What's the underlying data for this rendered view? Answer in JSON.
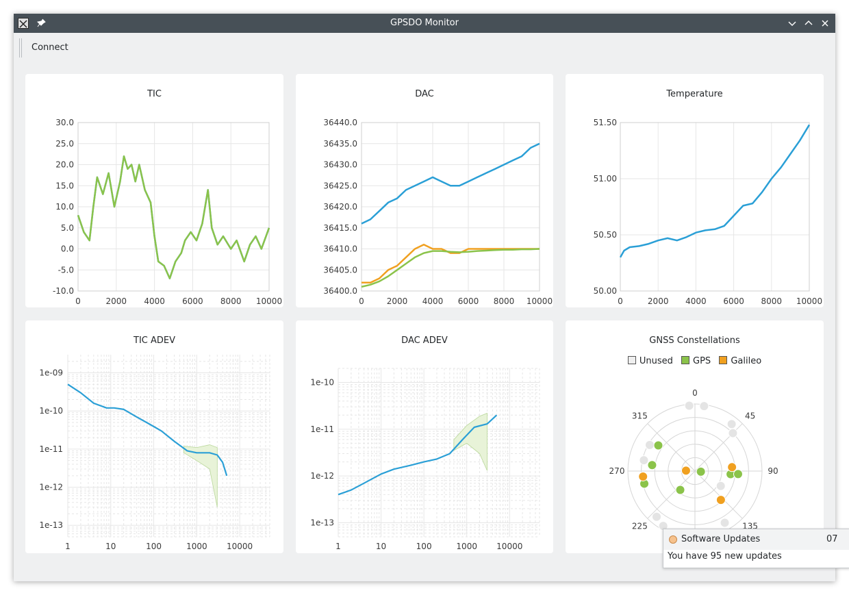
{
  "window": {
    "title": "GPSDO Monitor"
  },
  "toolbar": {
    "connect_label": "Connect"
  },
  "colors": {
    "blue": "#2a9fd6",
    "green": "#8bc34a",
    "orange": "#f0a020",
    "grid": "#e6e6e6",
    "fill": "#e8f3d8"
  },
  "panels": {
    "tic": {
      "title": "TIC",
      "chart_data": {
        "type": "line",
        "title": "TIC",
        "xlim": [
          0,
          10000
        ],
        "ylim": [
          -10,
          30
        ],
        "x_ticks": [
          "0",
          "2000",
          "4000",
          "6000",
          "8000",
          "10000"
        ],
        "y_ticks": [
          "30.0",
          "25.0",
          "20.0",
          "15.0",
          "10.0",
          "5.0",
          "0.0",
          "-5.0",
          "-10.0"
        ],
        "series": [
          {
            "color": "#2a9fd6",
            "x": [
              0,
              300,
              600,
              800,
              1000,
              1300,
              1600,
              1900,
              2200,
              2400,
              2600,
              2800,
              3000,
              3200,
              3500,
              3800,
              4000,
              4200,
              4500,
              4800,
              5100,
              5400,
              5600,
              5900,
              6200,
              6500,
              6800,
              7000,
              7300,
              7600,
              8000,
              8300,
              8700,
              9000,
              9300,
              9600,
              10000
            ],
            "y": [
              8,
              4,
              2,
              10,
              17,
              13,
              18,
              10,
              16,
              22,
              19,
              20,
              16,
              20,
              14,
              11,
              3,
              -3,
              -4,
              -7,
              -3,
              -1,
              2,
              4,
              2,
              6,
              14,
              5,
              1,
              3,
              0,
              2,
              -3,
              1,
              3,
              0,
              5
            ]
          },
          {
            "color": "#8bc34a",
            "x": [
              0,
              300,
              600,
              800,
              1000,
              1300,
              1600,
              1900,
              2200,
              2400,
              2600,
              2800,
              3000,
              3200,
              3500,
              3800,
              4000,
              4200,
              4500,
              4800,
              5100,
              5400,
              5600,
              5900,
              6200,
              6500,
              6800,
              7000,
              7300,
              7600,
              8000,
              8300,
              8700,
              9000,
              9300,
              9600,
              10000
            ],
            "y": [
              8,
              4,
              2,
              10,
              17,
              13,
              18,
              10,
              16,
              22,
              19,
              20,
              16,
              20,
              14,
              11,
              3,
              -3,
              -4,
              -7,
              -3,
              -1,
              2,
              4,
              2,
              6,
              14,
              5,
              1,
              3,
              0,
              2,
              -3,
              1,
              3,
              0,
              5
            ]
          }
        ]
      }
    },
    "dac": {
      "title": "DAC",
      "chart_data": {
        "type": "line",
        "title": "DAC",
        "xlim": [
          0,
          10000
        ],
        "ylim": [
          36400,
          36440
        ],
        "x_ticks": [
          "0",
          "2000",
          "4000",
          "6000",
          "8000",
          "10000"
        ],
        "y_ticks": [
          "36440.0",
          "36435.0",
          "36430.0",
          "36425.0",
          "36420.0",
          "36415.0",
          "36410.0",
          "36405.0",
          "36400.0"
        ],
        "series": [
          {
            "color": "#2a9fd6",
            "x": [
              0,
              500,
              1000,
              1500,
              2000,
              2500,
              3000,
              3500,
              4000,
              4500,
              5000,
              5500,
              6000,
              6500,
              7000,
              7500,
              8000,
              8500,
              9000,
              9500,
              10000
            ],
            "y": [
              36416,
              36417,
              36419,
              36421,
              36422,
              36424,
              36425,
              36426,
              36427,
              36426,
              36425,
              36425,
              36426,
              36427,
              36428,
              36429,
              36430,
              36431,
              36432,
              36434,
              36435
            ]
          },
          {
            "color": "#f0a020",
            "x": [
              0,
              500,
              1000,
              1500,
              2000,
              2500,
              3000,
              3500,
              4000,
              4500,
              5000,
              5500,
              6000,
              6500,
              7000,
              7500,
              8000,
              8500,
              9000,
              9500,
              10000
            ],
            "y": [
              36402,
              36402,
              36403,
              36405,
              36406,
              36408,
              36410,
              36411,
              36410,
              36410,
              36409,
              36409,
              36410,
              36410,
              36410,
              36410,
              36410,
              36410,
              36410,
              36410,
              36410
            ]
          },
          {
            "color": "#8bc34a",
            "x": [
              0,
              500,
              1000,
              1500,
              2000,
              2500,
              3000,
              3500,
              4000,
              4500,
              5000,
              5500,
              6000,
              6500,
              7000,
              7500,
              8000,
              8500,
              9000,
              9500,
              10000
            ],
            "y": [
              36401,
              36401.5,
              36402.3,
              36403.5,
              36405,
              36406.5,
              36408,
              36409,
              36409.5,
              36409.5,
              36409.3,
              36409.2,
              36409.3,
              36409.5,
              36409.6,
              36409.7,
              36409.8,
              36409.8,
              36409.9,
              36409.9,
              36410
            ]
          }
        ]
      }
    },
    "temp": {
      "title": "Temperature",
      "chart_data": {
        "type": "line",
        "title": "Temperature",
        "xlim": [
          0,
          10000
        ],
        "ylim": [
          50.0,
          51.5
        ],
        "x_ticks": [
          "0",
          "2000",
          "4000",
          "6000",
          "8000",
          "10000"
        ],
        "y_ticks": [
          "51.50",
          "51.00",
          "50.50",
          "50.00"
        ],
        "series": [
          {
            "color": "#2a9fd6",
            "x": [
              0,
              200,
              500,
              1000,
              1500,
              2000,
              2500,
              3000,
              3500,
              4000,
              4500,
              5000,
              5500,
              6000,
              6500,
              7000,
              7500,
              8000,
              8500,
              9000,
              9500,
              10000
            ],
            "y": [
              50.3,
              50.36,
              50.39,
              50.4,
              50.42,
              50.45,
              50.47,
              50.45,
              50.48,
              50.52,
              50.54,
              50.55,
              50.58,
              50.67,
              50.76,
              50.78,
              50.88,
              51.0,
              51.1,
              51.22,
              51.34,
              51.48
            ]
          }
        ]
      }
    },
    "tic_adev": {
      "title": "TIC ADEV",
      "chart_data": {
        "type": "line",
        "title": "TIC ADEV",
        "log_x": true,
        "log_y": true,
        "xlim": [
          1,
          50000
        ],
        "ylim": [
          5e-14,
          3e-09
        ],
        "x_ticks": [
          "1",
          "10",
          "100",
          "1000",
          "10000"
        ],
        "y_ticks": [
          "1e-09",
          "1e-10",
          "1e-11",
          "1e-12",
          "1e-13"
        ],
        "series": [
          {
            "color": "#2a9fd6",
            "x": [
              1,
              2,
              4,
              8,
              12,
              20,
              40,
              80,
              150,
              300,
              600,
              1000,
              2000,
              3000,
              4000,
              5000
            ],
            "y": [
              5e-10,
              3e-10,
              1.6e-10,
              1.2e-10,
              1.2e-10,
              1.1e-10,
              7e-11,
              4.5e-11,
              3e-11,
              1.6e-11,
              9e-12,
              8e-12,
              8e-12,
              7e-12,
              4.5e-12,
              2e-12
            ]
          }
        ],
        "band": {
          "x": [
            500,
            1000,
            2000,
            3000
          ],
          "y_upper": [
            1.2e-11,
            1.1e-11,
            1.3e-11,
            1.1e-11
          ],
          "y_lower": [
            8e-12,
            5e-12,
            3e-12,
            3e-13
          ]
        }
      }
    },
    "dac_adev": {
      "title": "DAC ADEV",
      "chart_data": {
        "type": "line",
        "title": "DAC ADEV",
        "log_x": true,
        "log_y": true,
        "xlim": [
          1,
          50000
        ],
        "ylim": [
          5e-14,
          2e-10
        ],
        "x_ticks": [
          "1",
          "10",
          "100",
          "1000",
          "10000"
        ],
        "y_ticks": [
          "1e-10",
          "1e-11",
          "1e-12",
          "1e-13"
        ],
        "series": [
          {
            "color": "#2a9fd6",
            "x": [
              1,
              2,
              4,
              10,
              20,
              50,
              100,
              200,
              400,
              800,
              1500,
              3000,
              5000
            ],
            "y": [
              4e-13,
              5e-13,
              7e-13,
              1.1e-12,
              1.4e-12,
              1.7e-12,
              2e-12,
              2.3e-12,
              3e-12,
              6e-12,
              1.1e-11,
              1.3e-11,
              2e-11
            ]
          }
        ],
        "band": {
          "x": [
            500,
            1000,
            2000,
            3000
          ],
          "y_upper": [
            6e-12,
            1.2e-11,
            1.9e-11,
            2.2e-11
          ],
          "y_lower": [
            3.5e-12,
            5e-12,
            3e-12,
            1.3e-12
          ]
        }
      }
    },
    "gnss": {
      "title": "GNSS Constellations",
      "legend": [
        {
          "label": "Unused",
          "color": "#efefef"
        },
        {
          "label": "GPS",
          "color": "#8bc34a"
        },
        {
          "label": "Galileo",
          "color": "#f0a020"
        }
      ],
      "angle_labels": [
        "0",
        "45",
        "90",
        "135",
        "225",
        "270",
        "315"
      ],
      "chart_data": {
        "type": "scatter",
        "polar": true,
        "title": "GNSS Constellations",
        "series": [
          {
            "name": "Unused",
            "color": "#e4e4e4",
            "points": [
              {
                "az": 355,
                "el": 2
              },
              {
                "az": 8,
                "el": 2
              },
              {
                "az": 38,
                "el": 10
              },
              {
                "az": 45,
                "el": 18
              },
              {
                "az": 300,
                "el": 20
              },
              {
                "az": 282,
                "el": 20
              },
              {
                "az": 220,
                "el": 10
              },
              {
                "az": 210,
                "el": 5
              },
              {
                "az": 180,
                "el": 3
              },
              {
                "az": 150,
                "el": 10
              },
              {
                "az": 120,
                "el": 50
              }
            ]
          },
          {
            "name": "GPS",
            "color": "#8bc34a",
            "points": [
              {
                "az": 305,
                "el": 30
              },
              {
                "az": 278,
                "el": 32
              },
              {
                "az": 256,
                "el": 20
              },
              {
                "az": 218,
                "el": 58
              },
              {
                "az": 95,
                "el": 42
              },
              {
                "az": 94,
                "el": 32
              },
              {
                "az": 96,
                "el": 82
              }
            ]
          },
          {
            "name": "Galileo",
            "color": "#f0a020",
            "points": [
              {
                "az": 264,
                "el": 20
              },
              {
                "az": 84,
                "el": 40
              },
              {
                "az": 273,
                "el": 78
              },
              {
                "az": 138,
                "el": 38
              }
            ]
          }
        ]
      }
    }
  },
  "toast": {
    "title": "Software Updates",
    "time": "07",
    "message": "You have 95 new updates"
  }
}
